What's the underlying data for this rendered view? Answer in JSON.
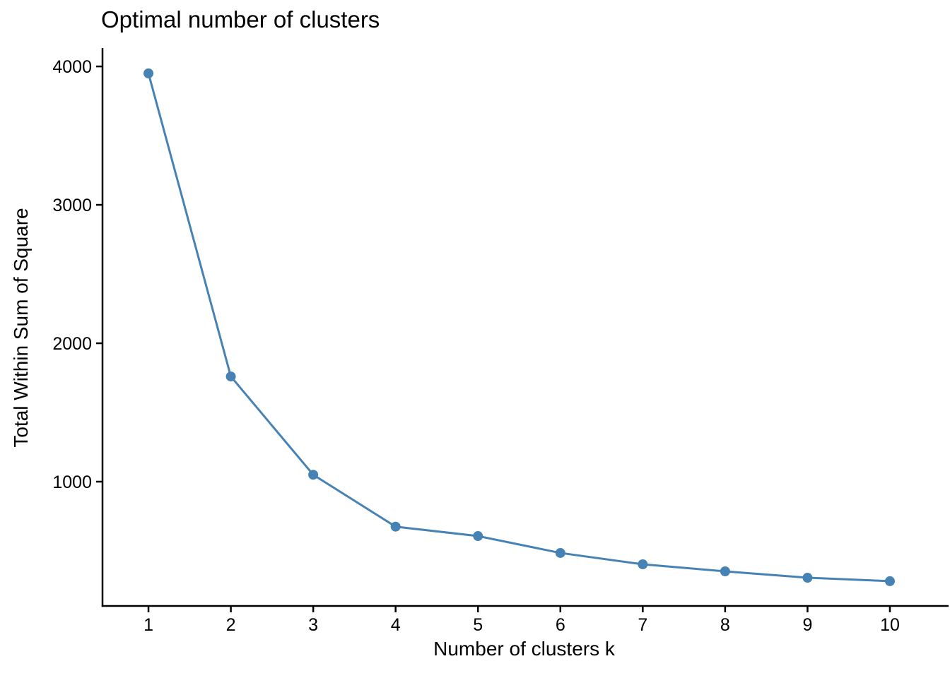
{
  "page": {
    "background": "#FFFFFF"
  },
  "chart_data": {
    "type": "line",
    "title": "Optimal number of clusters",
    "xlabel": "Number of clusters k",
    "ylabel": "Total Within Sum of Square",
    "x": [
      1,
      2,
      3,
      4,
      5,
      6,
      7,
      8,
      9,
      10
    ],
    "series": [
      {
        "name": "Total within sum of square",
        "values": [
          3950,
          1760,
          1050,
          675,
          607,
          485,
          403,
          352,
          306,
          281
        ]
      }
    ],
    "x_ticks": [
      1,
      2,
      3,
      4,
      5,
      6,
      7,
      8,
      9,
      10
    ],
    "y_ticks": [
      1000,
      2000,
      3000,
      4000
    ],
    "xlim": [
      0.442,
      10.678
    ],
    "ylim": [
      102,
      4133
    ],
    "grid": false,
    "legend": "none",
    "line_color": "#4682B4",
    "point_color": "#4682B4",
    "axis_color": "#000000",
    "text_color": "#000000"
  }
}
